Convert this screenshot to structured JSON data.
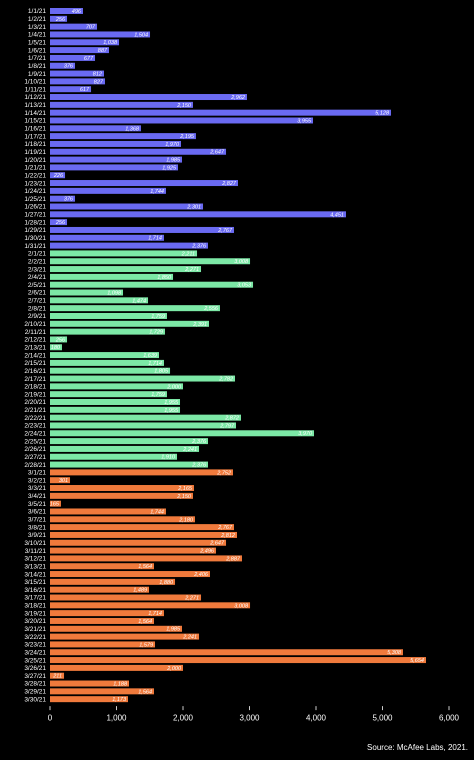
{
  "chart_data": {
    "type": "bar",
    "orientation": "horizontal",
    "source": "Source: McAfee Labs, 2021.",
    "categories": [
      "1/1/21",
      "1/2/21",
      "1/3/21",
      "1/4/21",
      "1/5/21",
      "1/6/21",
      "1/7/21",
      "1/8/21",
      "1/9/21",
      "1/10/21",
      "1/11/21",
      "1/12/21",
      "1/13/21",
      "1/14/21",
      "1/15/21",
      "1/16/21",
      "1/17/21",
      "1/18/21",
      "1/19/21",
      "1/20/21",
      "1/21/21",
      "1/22/21",
      "1/23/21",
      "1/24/21",
      "1/25/21",
      "1/26/21",
      "1/27/21",
      "1/28/21",
      "1/29/21",
      "1/30/21",
      "1/31/21",
      "2/1/21",
      "2/2/21",
      "2/3/21",
      "2/4/21",
      "2/5/21",
      "2/6/21",
      "2/7/21",
      "2/8/21",
      "2/9/21",
      "2/10/21",
      "2/11/21",
      "2/12/21",
      "2/13/21",
      "2/14/21",
      "2/15/21",
      "2/16/21",
      "2/17/21",
      "2/18/21",
      "2/19/21",
      "2/20/21",
      "2/21/21",
      "2/22/21",
      "2/23/21",
      "2/24/21",
      "2/25/21",
      "2/26/21",
      "2/27/21",
      "2/28/21",
      "3/1/21",
      "3/2/21",
      "3/3/21",
      "3/4/21",
      "3/5/21",
      "3/6/21",
      "3/7/21",
      "3/8/21",
      "3/9/21",
      "3/10/21",
      "3/11/21",
      "3/12/21",
      "3/13/21",
      "3/14/21",
      "3/15/21",
      "3/16/21",
      "3/17/21",
      "3/18/21",
      "3/19/21",
      "3/20/21",
      "3/21/21",
      "3/22/21",
      "3/23/21",
      "3/24/21",
      "3/25/21",
      "3/26/21",
      "3/27/21",
      "3/28/21",
      "3/29/21",
      "3/30/21"
    ],
    "values": [
      496,
      256,
      707,
      1504,
      1038,
      887,
      677,
      376,
      812,
      827,
      617,
      2962,
      2150,
      5128,
      3955,
      1368,
      2195,
      1970,
      2647,
      1985,
      1925,
      226,
      2827,
      1744,
      376,
      2301,
      4451,
      256,
      2767,
      1714,
      2376,
      2211,
      3008,
      2271,
      1850,
      3053,
      1098,
      1474,
      2556,
      1759,
      2391,
      1729,
      256,
      180,
      1639,
      1714,
      1805,
      2782,
      2000,
      1759,
      1955,
      1955,
      2872,
      2797,
      3970,
      2376,
      2241,
      1910,
      2376,
      2752,
      301,
      2165,
      2150,
      165,
      1744,
      2180,
      2767,
      2812,
      2647,
      2496,
      2887,
      1564,
      2406,
      1880,
      1489,
      2271,
      3008,
      1714,
      1564,
      1985,
      2241,
      1579,
      5308,
      5654,
      2000,
      211,
      1188,
      1564,
      1173
    ],
    "value_labels": [
      "496",
      "256",
      "707",
      "1,504",
      "1,038",
      "887",
      "677",
      "376",
      "812",
      "827",
      "617",
      "2,962",
      "2,150",
      "5,128",
      "3,955",
      "1,368",
      "2,195",
      "1,970",
      "2,647",
      "1,985",
      "1,925",
      "226",
      "2,827",
      "1,744",
      "376",
      "2,301",
      "4,451",
      "256",
      "2,767",
      "1,714",
      "2,376",
      "2,211",
      "3,008",
      "2,271",
      "1,850",
      "3,053",
      "1,098",
      "1,474",
      "2,556",
      "1,759",
      "2,391",
      "1,729",
      "256",
      "180",
      "1,639",
      "1,714",
      "1,805",
      "2,782",
      "2,000",
      "1,759",
      "1,955",
      "1,955",
      "2,872",
      "2,797",
      "3,970",
      "2,376",
      "2,241",
      "1,910",
      "2,376",
      "2,752",
      "301",
      "2,165",
      "2,150",
      "165",
      "1,744",
      "2,180",
      "2,767",
      "2,812",
      "2,647",
      "2,496",
      "2,887",
      "1,564",
      "2,406",
      "1,880",
      "1,489",
      "2,271",
      "3,008",
      "1,714",
      "1,564",
      "1,985",
      "2,241",
      "1,579",
      "5,308",
      "5,654",
      "2,000",
      "211",
      "1,188",
      "1,564",
      "1,173"
    ],
    "colors": [
      "#6a6af2",
      "#7ce8a6",
      "#f07a3c"
    ],
    "color_counts": [
      31,
      28,
      30
    ],
    "xlim": [
      0,
      6000
    ],
    "xticks": [
      0,
      {
        "value": 1000,
        "label": "1,000"
      },
      {
        "value": 2000,
        "label": "2,000"
      },
      {
        "value": 3000,
        "label": "3,000"
      },
      {
        "value": 4000,
        "label": "4,000"
      },
      {
        "value": 5000,
        "label": "5,000"
      },
      {
        "value": 6000,
        "label": "6,000"
      }
    ]
  }
}
